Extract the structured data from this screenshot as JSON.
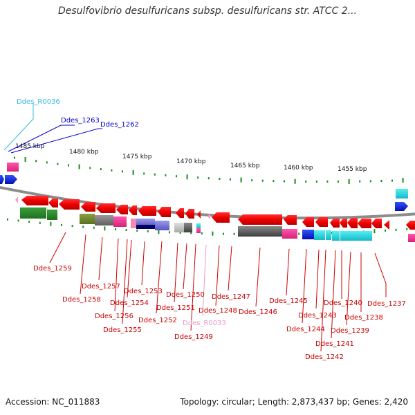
{
  "title": "Desulfovibrio desulfuricans subsp. desulfuricans str. ATCC 2...",
  "footer": {
    "accession": "Accession: NC_011883",
    "summary": "Topology: circular; Length: 2,873,437 bp; Genes: 2,420"
  },
  "colors": {
    "backbone": "#909090",
    "tick": "#1a8a1a",
    "label_red": "#cc0000",
    "label_blue": "#0000cc",
    "label_cyan": "#33bbdd",
    "label_pink": "#ee99cc"
  },
  "scale_labels": [
    "1485 kbp",
    "1480 kbp",
    "1475 kbp",
    "1470 kbp",
    "1465 kbp",
    "1460 kbp",
    "1455 kbp"
  ],
  "gene_labels": [
    "Ddes_R0036",
    "Ddes_1263",
    "Ddes_1262",
    "Ddes_1259",
    "Ddes_1257",
    "Ddes_1258",
    "Ddes_1254",
    "Ddes_1256",
    "Ddes_1255",
    "Ddes_1253",
    "Ddes_1252",
    "Ddes_1250",
    "Ddes_1251",
    "Ddes_R0033",
    "Ddes_1249",
    "Ddes_1248",
    "Ddes_1247",
    "Ddes_1246",
    "Ddes_1245",
    "Ddes_1244",
    "Ddes_1243",
    "Ddes_1242",
    "Ddes_1241",
    "Ddes_1240",
    "Ddes_1239",
    "Ddes_1238",
    "Ddes_1237"
  ]
}
